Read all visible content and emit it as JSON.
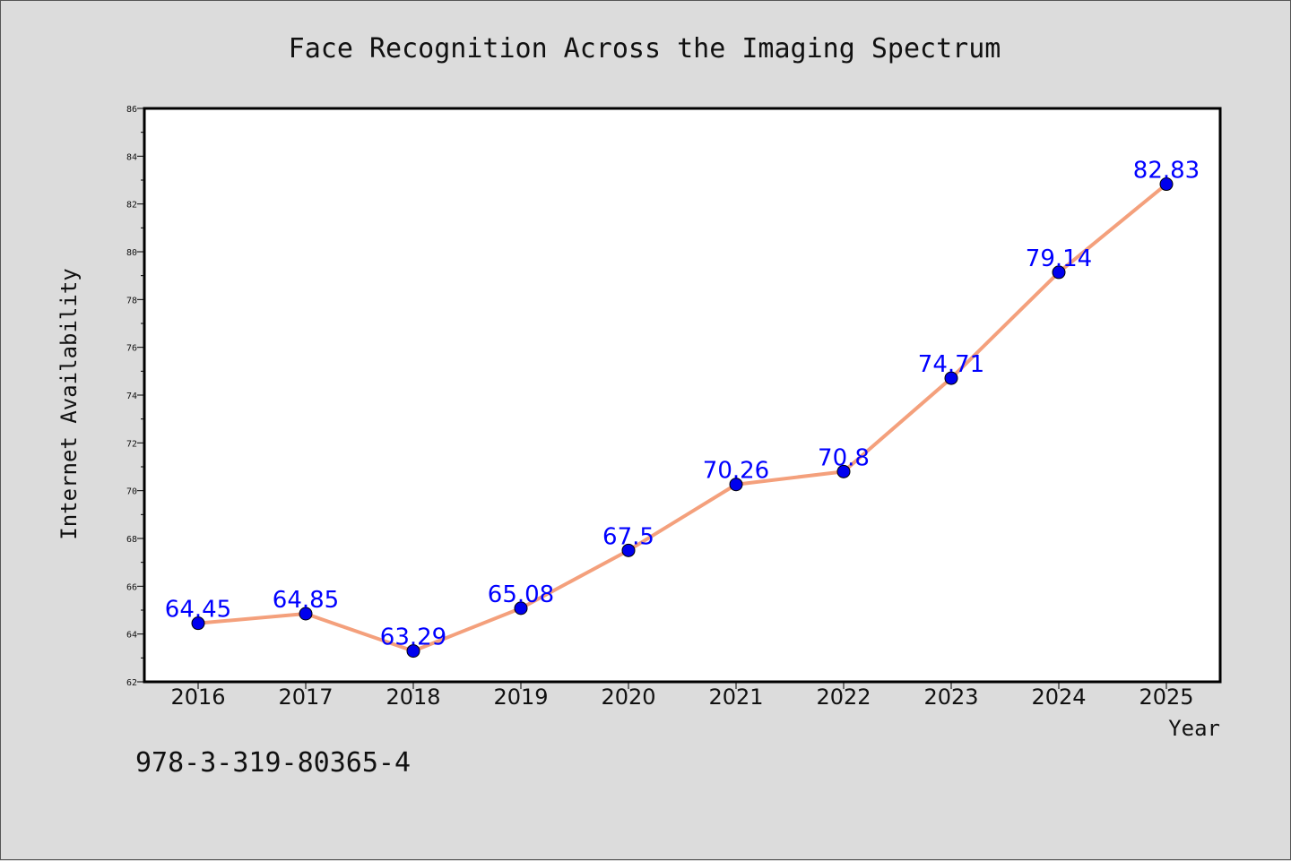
{
  "chart_data": {
    "type": "line",
    "title": "Face Recognition Across the Imaging Spectrum",
    "xlabel": "Year",
    "ylabel": "Internet Availability",
    "categories": [
      "2016",
      "2017",
      "2018",
      "2019",
      "2020",
      "2021",
      "2022",
      "2023",
      "2024",
      "2025"
    ],
    "series": [
      {
        "values": [
          64.45,
          64.85,
          63.29,
          65.08,
          67.5,
          70.26,
          70.8,
          74.71,
          79.14,
          82.83
        ],
        "data_labels": [
          "64.45",
          "64.85",
          "63.29",
          "65.08",
          "67.5",
          "70.26",
          "70.8",
          "74.71",
          "79.14",
          "82.83"
        ]
      }
    ],
    "ylim": [
      62,
      86
    ],
    "yticks": [
      "62",
      "64",
      "66",
      "68",
      "70",
      "72",
      "74",
      "76",
      "78",
      "80",
      "82",
      "84",
      "86"
    ],
    "grid": false,
    "legend": "none",
    "colors": {
      "line": "#f4a07c",
      "marker": "#0000ee",
      "label": "#0000ff",
      "background": "#dcdcdc",
      "plot_area": "#ffffff"
    }
  },
  "footnote": "978-3-319-80365-4"
}
